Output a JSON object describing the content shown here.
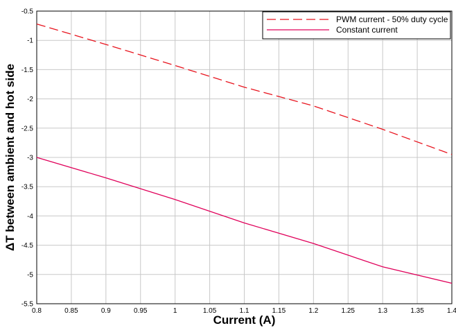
{
  "chart_data": {
    "type": "line",
    "xlabel": "Current (A)",
    "ylabel": "ΔT between ambient and hot side",
    "xlim": [
      0.8,
      1.4
    ],
    "ylim": [
      -5.5,
      -0.5
    ],
    "xticks": [
      "0.8",
      "0.85",
      "0.9",
      "0.95",
      "1",
      "1.05",
      "1.1",
      "1.15",
      "1.2",
      "1.25",
      "1.3",
      "1.35",
      "1.4"
    ],
    "yticks": [
      "-0.5",
      "-1",
      "-1.5",
      "-2",
      "-2.5",
      "-3",
      "-3.5",
      "-4",
      "-4.5",
      "-5",
      "-5.5"
    ],
    "grid": true,
    "legend_position": "top-right",
    "series": [
      {
        "name": "PWM current - 50% duty cycle",
        "color": "#e8141e",
        "style": "dashed",
        "x": [
          0.8,
          0.9,
          1.0,
          1.1,
          1.2,
          1.3,
          1.4
        ],
        "y": [
          -0.72,
          -1.07,
          -1.43,
          -1.8,
          -2.12,
          -2.52,
          -2.95
        ]
      },
      {
        "name": "Constant current",
        "color": "#e0005a",
        "style": "solid",
        "x": [
          0.8,
          0.9,
          1.0,
          1.1,
          1.2,
          1.3,
          1.4
        ],
        "y": [
          -3.0,
          -3.35,
          -3.72,
          -4.12,
          -4.47,
          -4.87,
          -5.15
        ]
      }
    ]
  }
}
